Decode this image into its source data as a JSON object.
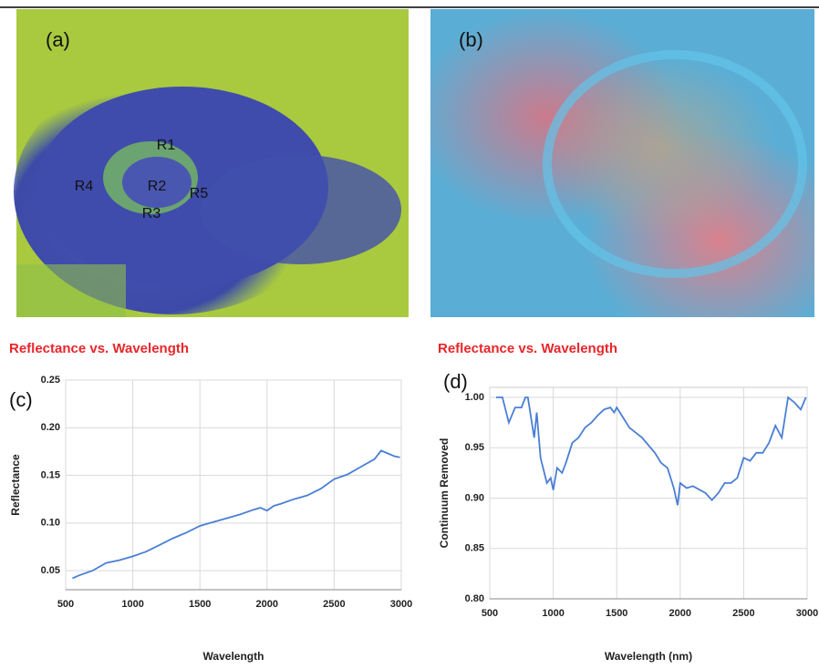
{
  "panels": [
    {
      "label": "(a)",
      "regions": [
        "R1",
        "R2",
        "R3",
        "R4",
        "R5"
      ]
    },
    {
      "label": "(b)"
    }
  ],
  "chart_data": [
    {
      "type": "line",
      "title": "Reflectance vs. Wavelength",
      "panel_label": "(c)",
      "x_label": "Wavelength",
      "y_label": "Reflectance",
      "color": "#4a7fd4",
      "grid": true,
      "x": [
        550,
        600,
        700,
        800,
        900,
        1000,
        1100,
        1200,
        1300,
        1400,
        1500,
        1600,
        1700,
        1800,
        1900,
        1950,
        2000,
        2050,
        2100,
        2200,
        2300,
        2400,
        2500,
        2600,
        2700,
        2800,
        2850,
        2900,
        2950,
        2990
      ],
      "values": [
        0.042,
        0.045,
        0.05,
        0.058,
        0.061,
        0.065,
        0.07,
        0.077,
        0.084,
        0.09,
        0.097,
        0.101,
        0.105,
        0.109,
        0.114,
        0.116,
        0.113,
        0.118,
        0.12,
        0.125,
        0.129,
        0.136,
        0.146,
        0.151,
        0.159,
        0.167,
        0.176,
        0.173,
        0.17,
        0.169
      ],
      "xlim": [
        500,
        3000
      ],
      "xticks": [
        500,
        1000,
        1500,
        2000,
        2500,
        3000
      ],
      "ylim": [
        0.03,
        0.25
      ],
      "yticks": [
        0.05,
        {
          "value": 0.1,
          "label": "0.10"
        },
        0.15,
        {
          "value": 0.2,
          "label": "0.20"
        },
        0.25
      ]
    },
    {
      "type": "line",
      "title": "Reflectance vs. Wavelength",
      "panel_label": "(d)",
      "x_label": "Wavelength (nm)",
      "y_label": "Continuum Removed",
      "color": "#4a7fd4",
      "grid": true,
      "x": [
        550,
        600,
        650,
        700,
        750,
        780,
        800,
        850,
        870,
        900,
        950,
        980,
        1000,
        1030,
        1070,
        1100,
        1150,
        1200,
        1250,
        1300,
        1350,
        1400,
        1450,
        1480,
        1500,
        1550,
        1600,
        1700,
        1800,
        1850,
        1900,
        1950,
        1980,
        2000,
        2050,
        2100,
        2200,
        2250,
        2300,
        2350,
        2400,
        2450,
        2500,
        2550,
        2600,
        2650,
        2700,
        2750,
        2800,
        2850,
        2900,
        2950,
        2990
      ],
      "values": [
        1.0,
        1.0,
        0.975,
        0.99,
        0.99,
        1.0,
        1.0,
        0.96,
        0.985,
        0.94,
        0.915,
        0.92,
        0.908,
        0.93,
        0.925,
        0.935,
        0.955,
        0.96,
        0.97,
        0.975,
        0.982,
        0.988,
        0.99,
        0.985,
        0.99,
        0.98,
        0.97,
        0.96,
        0.945,
        0.935,
        0.93,
        0.91,
        0.893,
        0.915,
        0.91,
        0.912,
        0.905,
        0.898,
        0.905,
        0.915,
        0.915,
        0.92,
        0.94,
        0.937,
        0.945,
        0.945,
        0.955,
        0.972,
        0.96,
        1.0,
        0.995,
        0.988,
        1.0
      ],
      "xlim": [
        500,
        3000
      ],
      "xticks": [
        500,
        1000,
        1500,
        2000,
        2500,
        3000
      ],
      "ylim": [
        0.8,
        1.01
      ],
      "yticks": [
        {
          "value": 0.8,
          "label": "0.80"
        },
        0.85,
        {
          "value": 0.9,
          "label": "0.90"
        },
        0.95,
        {
          "value": 1.0,
          "label": "1.00"
        }
      ]
    }
  ]
}
